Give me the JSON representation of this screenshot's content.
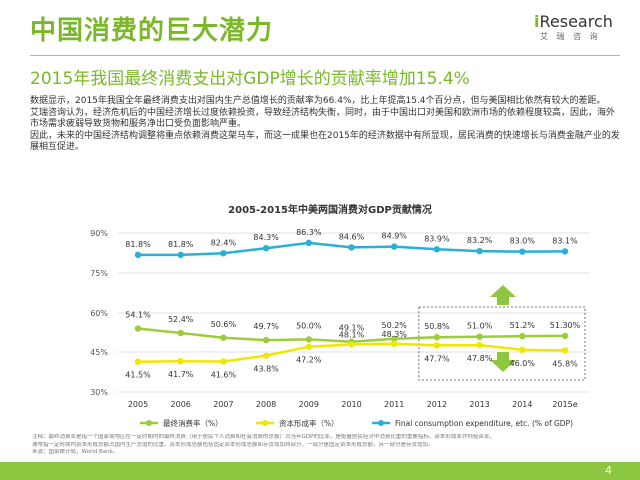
{
  "header": {
    "title": "中国消费的巨大潜力",
    "subtitle": "2015年我国最终消费支出对GDP增长的贡献率增加15.4%",
    "logo_main": "Research",
    "logo_sub": "艾 瑞 咨 询"
  },
  "paragraphs": [
    "数据显示，2015年我国全年最终消费支出对国内生产总值增长的贡献率为66.4%，比上年提高15.4个百分点，但与美国相比依然有较大的差距。",
    "艾瑞咨询认为，经济危机后的中国经济增长过度依赖投资，导致经济结构失衡，同时，由于中国出口对美国和欧洲市场的依赖程度较高，因此，海外市场需求疲弱导致货物和服务净出口受负面影响严重。",
    "因此，未来的中国经济结构调整将重点依赖消费这架马车，而这一成果也在2015年的经济数据中有所显现，居民消费的快速增长与消费金融产业的发展相互促进。"
  ],
  "chart_data": {
    "type": "line",
    "title": "2005-2015年中美两国消费对GDP贡献情况",
    "categories": [
      "2005",
      "2006",
      "2007",
      "2008",
      "2009",
      "2010",
      "2011",
      "2012",
      "2013",
      "2014",
      "2015e"
    ],
    "y_top": {
      "range": [
        75,
        90
      ],
      "ticks": [
        "90%",
        "75%"
      ]
    },
    "y_bottom": {
      "range": [
        30,
        60
      ],
      "ticks": [
        "60%",
        "45%",
        "30%"
      ]
    },
    "series": [
      {
        "name": "Final consumption expenditure, etc. (% of GDP)",
        "color": "#2ab0d8",
        "values": [
          81.8,
          81.8,
          82.4,
          84.3,
          86.3,
          84.6,
          84.9,
          83.9,
          83.2,
          83.0,
          83.1
        ],
        "labels": [
          "81.8%",
          "81.8%",
          "82.4%",
          "84.3%",
          "86.3%",
          "84.6%",
          "84.9%",
          "83.9%",
          "83.2%",
          "83.0%",
          "83.1%"
        ]
      },
      {
        "name": "最终消费率（%）",
        "color": "#9ccc3c",
        "values": [
          54.1,
          52.4,
          50.6,
          49.7,
          50.0,
          49.1,
          50.2,
          50.8,
          51.0,
          51.2,
          51.3
        ],
        "labels": [
          "54.1%",
          "52.4%",
          "50.6%",
          "49.7%",
          "50.0%",
          "49.1%",
          "50.2%",
          "50.8%",
          "51.0%",
          "51.2%",
          "51.30%"
        ]
      },
      {
        "name": "资本形成率（%）",
        "color": "#f0e600",
        "values": [
          41.5,
          41.7,
          41.6,
          43.8,
          47.2,
          48.1,
          48.3,
          47.7,
          47.8,
          46.0,
          45.8
        ],
        "labels": [
          "41.5%",
          "41.7%",
          "41.6%",
          "43.8%",
          "47.2%",
          "48.1%",
          "48.3%",
          "47.7%",
          "47.8%",
          "46.0%",
          "45.8%"
        ]
      }
    ],
    "legend": [
      "最终消费率（%）",
      "资本形成率（%）",
      "Final consumption expenditure, etc. (% of GDP)"
    ],
    "highlight": {
      "from": "2012",
      "to": "2015e",
      "arrow_up_color": "#8dc63f",
      "arrow_down_color": "#8dc63f"
    }
  },
  "notes": [
    "注释：最终消费率是指一个国家或地区在一定时期内的最终消费（用于居民个人消费和社会消费的总额）占当年GDP的比率，是衡量居民经济中消费比重的重要指标。资本形成率亦称投资率，",
    "通常指一定时期内资本形成总额占国内生产总值的比重。资本形成总额包括固定资本形成总额和存货增加两部分，一部分是固定资本形成总额，另一部分是存货增加。",
    "来源：国家统计局，World Bank。"
  ],
  "footer": {
    "page_number": "4"
  }
}
